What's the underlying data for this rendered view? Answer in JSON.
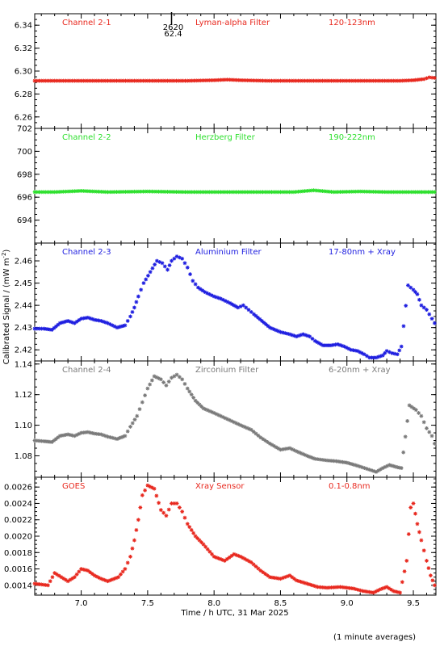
{
  "chart_data": [
    {
      "type": "scatter",
      "channel": "Channel 2-1",
      "filter": "Lyman-alpha Filter",
      "band": "120-123nm",
      "color": "#e8281e",
      "ylim": [
        6.25,
        6.35
      ],
      "yticks": [
        {
          "v": 6.26,
          "label": "6.26"
        },
        {
          "v": 6.28,
          "label": "6.28"
        },
        {
          "v": 6.3,
          "label": "6.30"
        },
        {
          "v": 6.32,
          "label": "6.32"
        },
        {
          "v": 6.34,
          "label": "6.34"
        }
      ],
      "series": [
        {
          "points": [
            [
              6.65,
              6.2915
            ],
            [
              6.8,
              6.2915
            ],
            [
              7.0,
              6.2915
            ],
            [
              7.2,
              6.2915
            ],
            [
              7.4,
              6.2915
            ],
            [
              7.6,
              6.2915
            ],
            [
              7.8,
              6.2915
            ],
            [
              8.0,
              6.292
            ],
            [
              8.1,
              6.2925
            ],
            [
              8.2,
              6.292
            ],
            [
              8.4,
              6.2915
            ],
            [
              8.6,
              6.2915
            ],
            [
              8.8,
              6.2915
            ],
            [
              9.0,
              6.2915
            ],
            [
              9.2,
              6.2915
            ],
            [
              9.4,
              6.2915
            ],
            [
              9.5,
              6.292
            ],
            [
              9.58,
              6.293
            ],
            [
              9.62,
              6.2945
            ],
            [
              9.66,
              6.294
            ]
          ]
        }
      ],
      "annotation": {
        "line1": "2620",
        "line2": "62.4",
        "x": 7.68
      }
    },
    {
      "type": "scatter",
      "channel": "Channel 2-2",
      "filter": "Herzberg Filter",
      "band": "190-222nm",
      "color": "#2ee02e",
      "ylim": [
        692,
        702
      ],
      "yticks": [
        {
          "v": 694,
          "label": "694"
        },
        {
          "v": 696,
          "label": "696"
        },
        {
          "v": 698,
          "label": "698"
        },
        {
          "v": 700,
          "label": "700"
        },
        {
          "v": 702,
          "label": "702"
        }
      ],
      "series": [
        {
          "points": [
            [
              6.65,
              696.45
            ],
            [
              6.8,
              696.45
            ],
            [
              7.0,
              696.55
            ],
            [
              7.2,
              696.45
            ],
            [
              7.5,
              696.5
            ],
            [
              7.8,
              696.45
            ],
            [
              8.0,
              696.45
            ],
            [
              8.3,
              696.45
            ],
            [
              8.6,
              696.45
            ],
            [
              8.75,
              696.6
            ],
            [
              8.9,
              696.45
            ],
            [
              9.1,
              696.5
            ],
            [
              9.3,
              696.45
            ],
            [
              9.5,
              696.45
            ],
            [
              9.66,
              696.45
            ]
          ]
        }
      ]
    },
    {
      "type": "scatter",
      "channel": "Channel 2-3",
      "filter": "Aluminium Filter",
      "band": "17-80nm + Xray",
      "color": "#1e1ee0",
      "ylim": [
        2.415,
        2.468
      ],
      "yticks": [
        {
          "v": 2.42,
          "label": "2.42"
        },
        {
          "v": 2.43,
          "label": "2.43"
        },
        {
          "v": 2.44,
          "label": "2.44"
        },
        {
          "v": 2.45,
          "label": "2.45"
        },
        {
          "v": 2.46,
          "label": "2.46"
        }
      ],
      "series": [
        {
          "points": [
            [
              6.65,
              2.4295
            ],
            [
              6.72,
              2.4295
            ],
            [
              6.78,
              2.429
            ],
            [
              6.84,
              2.432
            ],
            [
              6.9,
              2.433
            ],
            [
              6.95,
              2.432
            ],
            [
              7.0,
              2.434
            ],
            [
              7.05,
              2.4345
            ],
            [
              7.1,
              2.4335
            ],
            [
              7.15,
              2.433
            ],
            [
              7.2,
              2.432
            ],
            [
              7.27,
              2.43
            ],
            [
              7.33,
              2.431
            ],
            [
              7.37,
              2.435
            ],
            [
              7.4,
              2.439
            ],
            [
              7.43,
              2.444
            ],
            [
              7.47,
              2.45
            ],
            [
              7.52,
              2.455
            ],
            [
              7.57,
              2.46
            ],
            [
              7.61,
              2.459
            ],
            [
              7.65,
              2.456
            ],
            [
              7.68,
              2.46
            ],
            [
              7.72,
              2.462
            ],
            [
              7.76,
              2.461
            ],
            [
              7.8,
              2.457
            ],
            [
              7.84,
              2.451
            ],
            [
              7.88,
              2.448
            ],
            [
              7.93,
              2.446
            ],
            [
              8.0,
              2.444
            ],
            [
              8.05,
              2.443
            ],
            [
              8.12,
              2.441
            ],
            [
              8.18,
              2.439
            ],
            [
              8.22,
              2.44
            ],
            [
              8.26,
              2.438
            ],
            [
              8.3,
              2.436
            ],
            [
              8.36,
              2.433
            ],
            [
              8.42,
              2.43
            ],
            [
              8.5,
              2.428
            ],
            [
              8.57,
              2.427
            ],
            [
              8.62,
              2.426
            ],
            [
              8.67,
              2.427
            ],
            [
              8.72,
              2.426
            ],
            [
              8.76,
              2.424
            ],
            [
              8.82,
              2.422
            ],
            [
              8.88,
              2.422
            ],
            [
              8.93,
              2.4225
            ],
            [
              8.98,
              2.4215
            ],
            [
              9.03,
              2.42
            ],
            [
              9.08,
              2.4195
            ],
            [
              9.13,
              2.418
            ],
            [
              9.17,
              2.4165
            ],
            [
              9.22,
              2.4165
            ],
            [
              9.27,
              2.4175
            ],
            [
              9.3,
              2.4195
            ],
            [
              9.34,
              2.4185
            ],
            [
              9.38,
              2.418
            ],
            [
              9.41,
              2.4215
            ],
            [
              9.46,
              2.449
            ],
            [
              9.5,
              2.447
            ],
            [
              9.53,
              2.445
            ],
            [
              9.56,
              2.44
            ],
            [
              9.6,
              2.438
            ],
            [
              9.64,
              2.434
            ],
            [
              9.66,
              2.432
            ]
          ]
        }
      ]
    },
    {
      "type": "scatter",
      "channel": "Channel 2-4",
      "filter": "Zirconium Filter",
      "band": "6-20nm + Xray",
      "color": "#7a7a7a",
      "ylim": [
        1.066,
        1.142
      ],
      "yticks": [
        {
          "v": 1.08,
          "label": "1.08"
        },
        {
          "v": 1.1,
          "label": "1.10"
        },
        {
          "v": 1.12,
          "label": "1.12"
        },
        {
          "v": 1.14,
          "label": "1.14"
        }
      ],
      "series": [
        {
          "points": [
            [
              6.65,
              1.09
            ],
            [
              6.72,
              1.0895
            ],
            [
              6.78,
              1.089
            ],
            [
              6.84,
              1.093
            ],
            [
              6.9,
              1.094
            ],
            [
              6.95,
              1.093
            ],
            [
              7.0,
              1.095
            ],
            [
              7.05,
              1.0955
            ],
            [
              7.1,
              1.0945
            ],
            [
              7.15,
              1.094
            ],
            [
              7.2,
              1.0925
            ],
            [
              7.27,
              1.091
            ],
            [
              7.33,
              1.093
            ],
            [
              7.37,
              1.099
            ],
            [
              7.42,
              1.106
            ],
            [
              7.46,
              1.115
            ],
            [
              7.5,
              1.124
            ],
            [
              7.55,
              1.132
            ],
            [
              7.6,
              1.13
            ],
            [
              7.64,
              1.126
            ],
            [
              7.68,
              1.131
            ],
            [
              7.72,
              1.133
            ],
            [
              7.76,
              1.13
            ],
            [
              7.8,
              1.124
            ],
            [
              7.86,
              1.116
            ],
            [
              7.92,
              1.111
            ],
            [
              8.0,
              1.108
            ],
            [
              8.1,
              1.104
            ],
            [
              8.2,
              1.1
            ],
            [
              8.28,
              1.097
            ],
            [
              8.35,
              1.092
            ],
            [
              8.42,
              1.088
            ],
            [
              8.5,
              1.084
            ],
            [
              8.57,
              1.085
            ],
            [
              8.62,
              1.083
            ],
            [
              8.7,
              1.08
            ],
            [
              8.76,
              1.078
            ],
            [
              8.85,
              1.077
            ],
            [
              8.92,
              1.0765
            ],
            [
              9.0,
              1.0755
            ],
            [
              9.08,
              1.0735
            ],
            [
              9.15,
              1.0715
            ],
            [
              9.22,
              1.0695
            ],
            [
              9.27,
              1.072
            ],
            [
              9.32,
              1.074
            ],
            [
              9.38,
              1.0725
            ],
            [
              9.41,
              1.072
            ],
            [
              9.47,
              1.113
            ],
            [
              9.52,
              1.11
            ],
            [
              9.56,
              1.106
            ],
            [
              9.6,
              1.098
            ],
            [
              9.64,
              1.093
            ],
            [
              9.66,
              1.088
            ]
          ]
        }
      ]
    },
    {
      "type": "scatter",
      "channel": "GOES",
      "filter": "Xray Sensor",
      "band": "0.1-0.8nm",
      "color": "#e8281e",
      "ylim": [
        0.00128,
        0.00272
      ],
      "yticks": [
        {
          "v": 0.0014,
          "label": "0.0014"
        },
        {
          "v": 0.0016,
          "label": "0.0016"
        },
        {
          "v": 0.0018,
          "label": "0.0018"
        },
        {
          "v": 0.002,
          "label": "0.0020"
        },
        {
          "v": 0.0022,
          "label": "0.0022"
        },
        {
          "v": 0.0024,
          "label": "0.0024"
        },
        {
          "v": 0.0026,
          "label": "0.0026"
        }
      ],
      "series": [
        {
          "points": [
            [
              6.65,
              0.00142
            ],
            [
              6.75,
              0.0014
            ],
            [
              6.8,
              0.00155
            ],
            [
              6.85,
              0.0015
            ],
            [
              6.9,
              0.00145
            ],
            [
              6.95,
              0.0015
            ],
            [
              7.0,
              0.0016
            ],
            [
              7.05,
              0.00158
            ],
            [
              7.1,
              0.00152
            ],
            [
              7.15,
              0.00148
            ],
            [
              7.2,
              0.00145
            ],
            [
              7.28,
              0.0015
            ],
            [
              7.33,
              0.0016
            ],
            [
              7.37,
              0.00175
            ],
            [
              7.4,
              0.00195
            ],
            [
              7.43,
              0.0022
            ],
            [
              7.46,
              0.0025
            ],
            [
              7.5,
              0.00262
            ],
            [
              7.55,
              0.00258
            ],
            [
              7.6,
              0.00232
            ],
            [
              7.64,
              0.00225
            ],
            [
              7.68,
              0.0024
            ],
            [
              7.72,
              0.0024
            ],
            [
              7.76,
              0.0023
            ],
            [
              7.8,
              0.00215
            ],
            [
              7.86,
              0.002
            ],
            [
              7.92,
              0.0019
            ],
            [
              8.0,
              0.00175
            ],
            [
              8.08,
              0.0017
            ],
            [
              8.15,
              0.00178
            ],
            [
              8.2,
              0.00175
            ],
            [
              8.28,
              0.00168
            ],
            [
              8.35,
              0.00158
            ],
            [
              8.42,
              0.0015
            ],
            [
              8.5,
              0.00148
            ],
            [
              8.57,
              0.00152
            ],
            [
              8.62,
              0.00146
            ],
            [
              8.7,
              0.00142
            ],
            [
              8.78,
              0.00138
            ],
            [
              8.85,
              0.00137
            ],
            [
              8.95,
              0.00138
            ],
            [
              9.05,
              0.00136
            ],
            [
              9.12,
              0.00133
            ],
            [
              9.2,
              0.00131
            ],
            [
              9.25,
              0.00135
            ],
            [
              9.3,
              0.00138
            ],
            [
              9.35,
              0.00133
            ],
            [
              9.4,
              0.00131
            ],
            [
              9.45,
              0.0017
            ],
            [
              9.48,
              0.00235
            ],
            [
              9.5,
              0.0024
            ],
            [
              9.53,
              0.00215
            ],
            [
              9.56,
              0.00195
            ],
            [
              9.6,
              0.0017
            ],
            [
              9.63,
              0.00152
            ],
            [
              9.66,
              0.0014
            ]
          ]
        }
      ]
    }
  ],
  "xaxis": {
    "label": "Time / h UTC, 31 Mar 2025",
    "xlim": [
      6.65,
      9.67
    ],
    "ticks": [
      {
        "v": 7.0,
        "label": "7.0"
      },
      {
        "v": 7.5,
        "label": "7.5"
      },
      {
        "v": 8.0,
        "label": "8.0"
      },
      {
        "v": 8.5,
        "label": "8.5"
      },
      {
        "v": 9.0,
        "label": "9.0"
      },
      {
        "v": 9.5,
        "label": "9.5"
      }
    ]
  },
  "ylabel": "Calibrated Signal / (mW m",
  "ylabel_sup": "-2",
  "ylabel_end": ")",
  "footnote": "(1 minute averages)"
}
